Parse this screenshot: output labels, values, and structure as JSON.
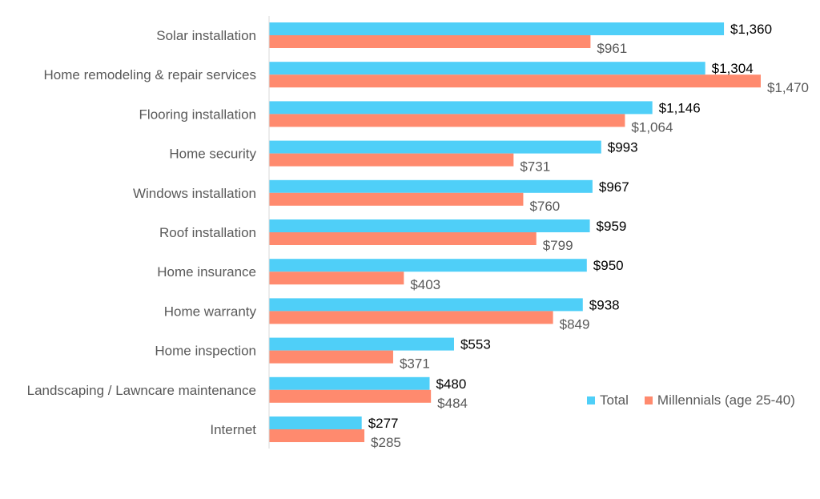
{
  "chart_data": {
    "type": "bar",
    "orientation": "horizontal",
    "categories": [
      "Solar installation",
      "Home remodeling & repair services",
      "Flooring installation",
      "Home security",
      "Windows installation",
      "Roof installation",
      "Home insurance",
      "Home warranty",
      "Home inspection",
      "Landscaping / Lawncare maintenance",
      "Internet"
    ],
    "series": [
      {
        "name": "Total",
        "color": "#4FCFF8",
        "values": [
          1360,
          1304,
          1146,
          993,
          967,
          959,
          950,
          938,
          553,
          480,
          277
        ],
        "labels": [
          "$1,360",
          "$1,304",
          "$1,146",
          "$993",
          "$967",
          "$959",
          "$950",
          "$938",
          "$553",
          "$480",
          "$277"
        ]
      },
      {
        "name": "Millennials (age 25-40)",
        "color": "#FF8A6E",
        "values": [
          961,
          1470,
          1064,
          731,
          760,
          799,
          403,
          849,
          371,
          484,
          285
        ],
        "labels": [
          "$961",
          "$1,470",
          "$1,064",
          "$731",
          "$760",
          "$799",
          "$403",
          "$849",
          "$371",
          "$484",
          "$285"
        ]
      }
    ],
    "xlim": [
      0,
      1470
    ],
    "grid": false,
    "legend_position": "bottom-right"
  }
}
